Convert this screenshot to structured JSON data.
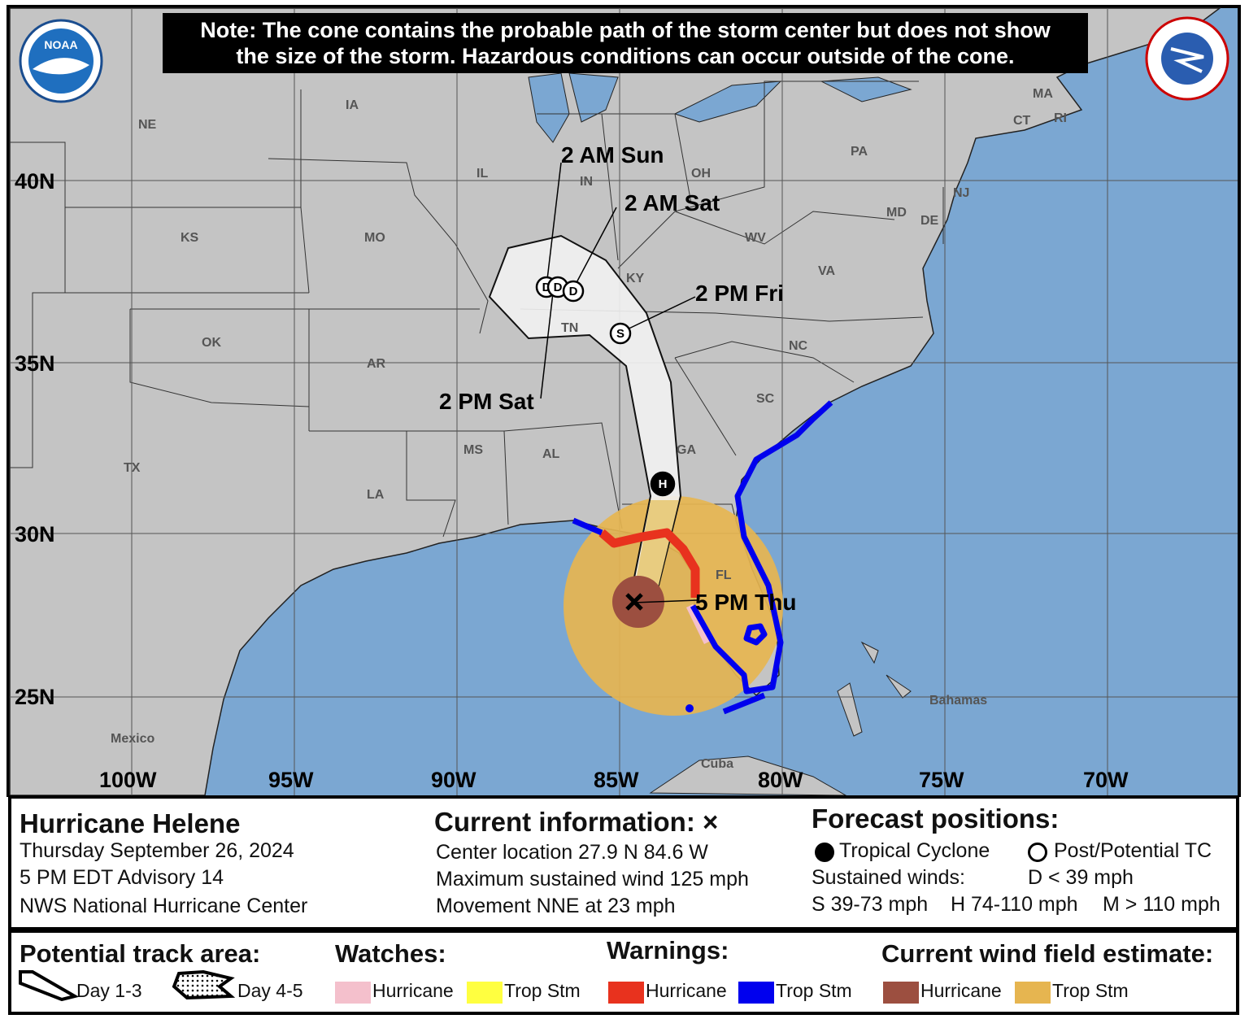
{
  "note": {
    "line1": "Note: The cone contains the probable path of the storm center but does not show",
    "line2": "the size of the storm. Hazardous conditions can occur outside of the cone."
  },
  "logos": {
    "left": "NOAA",
    "right": "NATIONAL WEATHER SERVICE"
  },
  "colors": {
    "ocean": "#7ba7d2",
    "land": "#c4c4c4",
    "cone": "#f2f2f2",
    "hurricane_warning": "#e8321e",
    "trop_storm_warning": "#0000ee",
    "hurricane_watch": "#f4c0cc",
    "trop_storm_watch": "#ffff40",
    "hurricane_wind": "#9c4f40",
    "trop_storm_wind": "#e6b550"
  },
  "map": {
    "lat_labels": [
      "40N",
      "35N",
      "30N",
      "25N"
    ],
    "lon_labels": [
      "100W",
      "95W",
      "90W",
      "85W",
      "80W",
      "75W",
      "70W"
    ],
    "states": [
      "NE",
      "IA",
      "IL",
      "IN",
      "OH",
      "PA",
      "MA",
      "CT",
      "RI",
      "NJ",
      "MD",
      "DE",
      "KS",
      "MO",
      "WV",
      "VA",
      "KY",
      "OK",
      "AR",
      "TN",
      "NC",
      "SC",
      "GA",
      "MS",
      "AL",
      "TX",
      "LA",
      "FL",
      "Mexico",
      "Bahamas",
      "Cuba"
    ],
    "forecast_labels": [
      "2 AM Sun",
      "2 AM Sat",
      "2 PM Fri",
      "2 PM Sat",
      "5 PM Thu"
    ],
    "forecast_points": [
      "D",
      "D",
      "D",
      "S",
      "H"
    ]
  },
  "info": {
    "storm_name": "Hurricane Helene",
    "date": "Thursday September 26, 2024",
    "advisory": "5 PM EDT Advisory 14",
    "center": "NWS National Hurricane Center",
    "current_title": "Current information: ×",
    "location": "Center location 27.9 N 84.6 W",
    "max_wind": "Maximum sustained wind 125 mph",
    "movement": "Movement NNE at 23 mph",
    "forecast_title": "Forecast positions:",
    "tropical_cyclone": "Tropical Cyclone",
    "post_tc": "Post/Potential TC",
    "sustained": "Sustained winds:",
    "d_cat": "D < 39 mph",
    "s_cat": "S 39-73 mph",
    "h_cat": "H 74-110 mph",
    "m_cat": "M > 110 mph"
  },
  "legend": {
    "track_title": "Potential track area:",
    "day13": "Day 1-3",
    "day45": "Day 4-5",
    "watches_title": "Watches:",
    "watch_hurricane": "Hurricane",
    "watch_ts": "Trop Stm",
    "warnings_title": "Warnings:",
    "warn_hurricane": "Hurricane",
    "warn_ts": "Trop Stm",
    "wind_title": "Current wind field estimate:",
    "wind_hurricane": "Hurricane",
    "wind_ts": "Trop Stm"
  }
}
